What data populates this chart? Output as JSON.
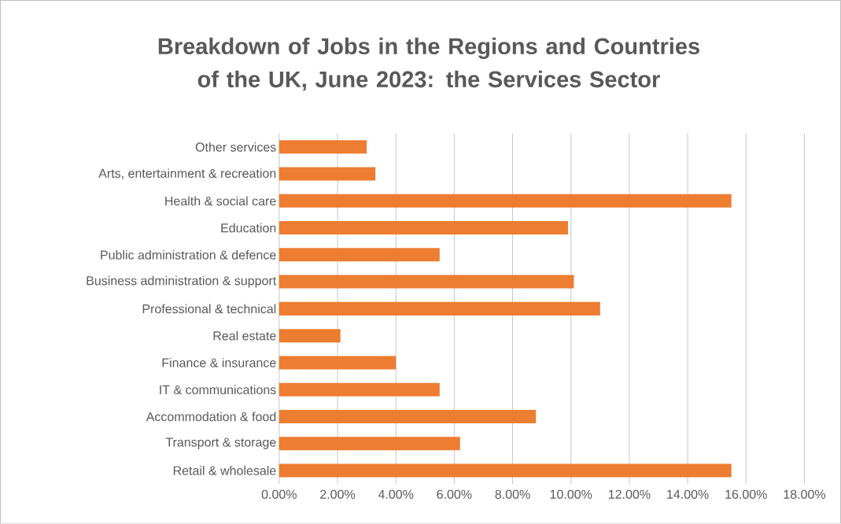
{
  "chart_data": {
    "type": "bar",
    "orientation": "horizontal",
    "title": "Breakdown of Jobs in the Regions and Countries of the UK, June 2023: the Services Sector",
    "categories": [
      "Other services",
      "Arts, entertainment & recreation",
      "Health & social care",
      "Education",
      "Public administration & defence",
      "Business administration & support",
      "Professional & technical",
      "Real estate",
      "Finance & insurance",
      "IT & communications",
      "Accommodation & food",
      "Transport & storage",
      "Retail & wholesale"
    ],
    "values": [
      3.0,
      3.3,
      15.5,
      9.9,
      5.5,
      10.1,
      11.0,
      2.1,
      4.0,
      5.5,
      8.8,
      6.2,
      15.5
    ],
    "color": "#ed7d31",
    "xlim": [
      0,
      18
    ],
    "xticks": [
      {
        "value": 0,
        "label": "0.00%"
      },
      {
        "value": 2,
        "label": "2.00%"
      },
      {
        "value": 4,
        "label": "4.00%"
      },
      {
        "value": 6,
        "label": "6.00%"
      },
      {
        "value": 8,
        "label": "8.00%"
      },
      {
        "value": 10,
        "label": "10.00%"
      },
      {
        "value": 12,
        "label": "12.00%"
      },
      {
        "value": 14,
        "label": "14.00%"
      },
      {
        "value": 16,
        "label": "16.00%"
      },
      {
        "value": 18,
        "label": "18.00%"
      }
    ],
    "grid": "x"
  }
}
